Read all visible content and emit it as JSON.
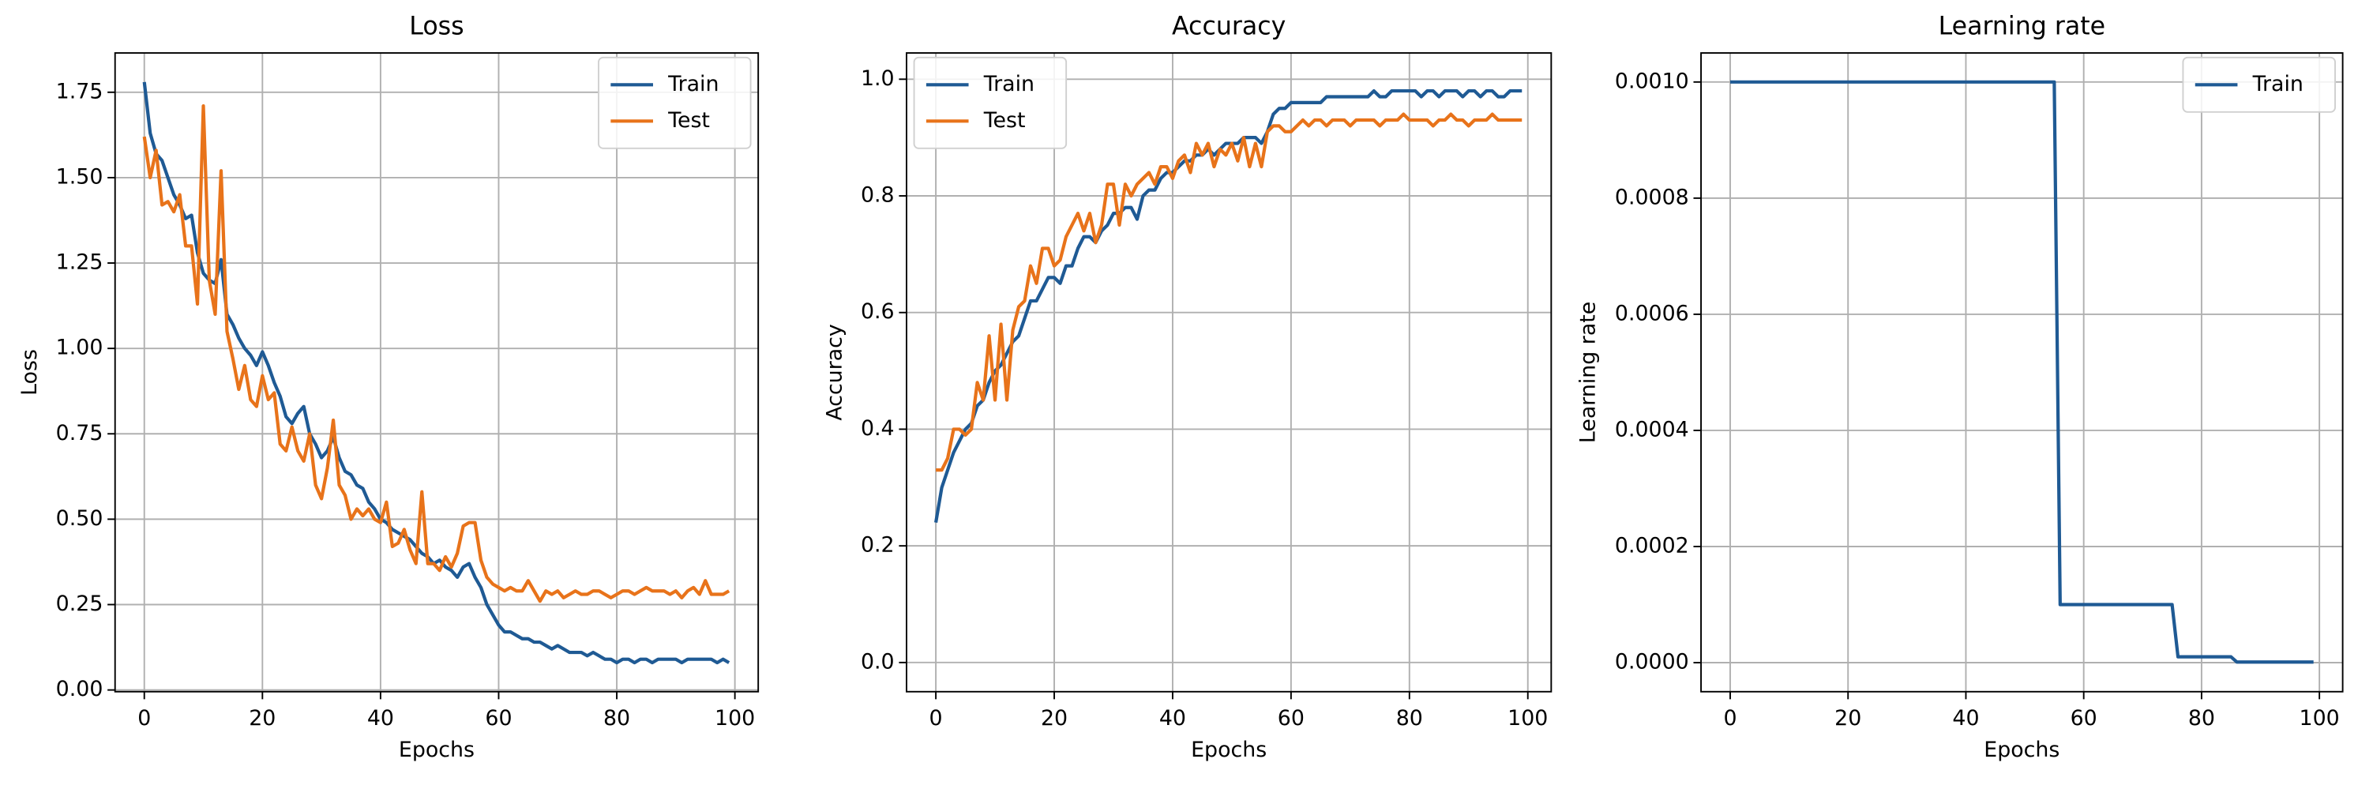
{
  "chart_data": [
    {
      "type": "line",
      "title": "Loss",
      "xlabel": "Epochs",
      "ylabel": "Loss",
      "x": [
        0,
        1,
        2,
        3,
        4,
        5,
        6,
        7,
        8,
        9,
        10,
        11,
        12,
        13,
        14,
        15,
        16,
        17,
        18,
        19,
        20,
        21,
        22,
        23,
        24,
        25,
        26,
        27,
        28,
        29,
        30,
        31,
        32,
        33,
        34,
        35,
        36,
        37,
        38,
        39,
        40,
        41,
        42,
        43,
        44,
        45,
        46,
        47,
        48,
        49,
        50,
        51,
        52,
        53,
        54,
        55,
        56,
        57,
        58,
        59,
        60,
        61,
        62,
        63,
        64,
        65,
        66,
        67,
        68,
        69,
        70,
        71,
        72,
        73,
        74,
        75,
        76,
        77,
        78,
        79,
        80,
        81,
        82,
        83,
        84,
        85,
        86,
        87,
        88,
        89,
        90,
        91,
        92,
        93,
        94,
        95,
        96,
        97,
        98,
        99
      ],
      "series": [
        {
          "name": "Train",
          "color": "#1f5a94",
          "values": [
            1.78,
            1.63,
            1.57,
            1.55,
            1.5,
            1.45,
            1.42,
            1.38,
            1.39,
            1.28,
            1.22,
            1.2,
            1.19,
            1.26,
            1.1,
            1.07,
            1.03,
            1.0,
            0.98,
            0.95,
            0.99,
            0.95,
            0.9,
            0.86,
            0.8,
            0.78,
            0.81,
            0.83,
            0.75,
            0.72,
            0.68,
            0.7,
            0.74,
            0.68,
            0.64,
            0.63,
            0.6,
            0.59,
            0.55,
            0.53,
            0.5,
            0.49,
            0.47,
            0.46,
            0.45,
            0.44,
            0.42,
            0.4,
            0.39,
            0.37,
            0.38,
            0.36,
            0.35,
            0.33,
            0.36,
            0.37,
            0.33,
            0.3,
            0.25,
            0.22,
            0.19,
            0.17,
            0.17,
            0.16,
            0.15,
            0.15,
            0.14,
            0.14,
            0.13,
            0.12,
            0.13,
            0.12,
            0.11,
            0.11,
            0.11,
            0.1,
            0.11,
            0.1,
            0.09,
            0.09,
            0.08,
            0.09,
            0.09,
            0.08,
            0.09,
            0.09,
            0.08,
            0.09,
            0.09,
            0.09,
            0.09,
            0.08,
            0.09,
            0.09,
            0.09,
            0.09,
            0.09,
            0.08,
            0.09,
            0.08
          ]
        },
        {
          "name": "Test",
          "color": "#e8731a",
          "values": [
            1.62,
            1.5,
            1.58,
            1.42,
            1.43,
            1.4,
            1.45,
            1.3,
            1.3,
            1.13,
            1.71,
            1.2,
            1.1,
            1.52,
            1.05,
            0.97,
            0.88,
            0.95,
            0.85,
            0.83,
            0.92,
            0.85,
            0.87,
            0.72,
            0.7,
            0.77,
            0.7,
            0.67,
            0.75,
            0.6,
            0.56,
            0.65,
            0.79,
            0.6,
            0.57,
            0.5,
            0.53,
            0.51,
            0.53,
            0.5,
            0.49,
            0.55,
            0.42,
            0.43,
            0.47,
            0.41,
            0.37,
            0.58,
            0.37,
            0.37,
            0.35,
            0.39,
            0.36,
            0.4,
            0.48,
            0.49,
            0.49,
            0.38,
            0.33,
            0.31,
            0.3,
            0.29,
            0.3,
            0.29,
            0.29,
            0.32,
            0.29,
            0.26,
            0.29,
            0.28,
            0.29,
            0.27,
            0.28,
            0.29,
            0.28,
            0.28,
            0.29,
            0.29,
            0.28,
            0.27,
            0.28,
            0.29,
            0.29,
            0.28,
            0.29,
            0.3,
            0.29,
            0.29,
            0.29,
            0.28,
            0.29,
            0.27,
            0.29,
            0.3,
            0.28,
            0.32,
            0.28,
            0.28,
            0.28,
            0.29
          ]
        }
      ],
      "xlim": [
        -4.95,
        103.95
      ],
      "ylim": [
        -0.005,
        1.865
      ],
      "xticks": [
        0,
        20,
        40,
        60,
        80,
        100
      ],
      "yticks": [
        {
          "value": 0,
          "label": "0.00"
        },
        {
          "value": 0.25,
          "label": "0.25"
        },
        {
          "value": 0.5,
          "label": "0.50"
        },
        {
          "value": 0.75,
          "label": "0.75"
        },
        {
          "value": 1,
          "label": "1.00"
        },
        {
          "value": 1.25,
          "label": "1.25"
        },
        {
          "value": 1.5,
          "label": "1.50"
        },
        {
          "value": 1.75,
          "label": "1.75"
        }
      ],
      "grid": true,
      "legend": "upper right"
    },
    {
      "type": "line",
      "title": "Accuracy",
      "xlabel": "Epochs",
      "ylabel": "Accuracy",
      "x": [
        0,
        1,
        2,
        3,
        4,
        5,
        6,
        7,
        8,
        9,
        10,
        11,
        12,
        13,
        14,
        15,
        16,
        17,
        18,
        19,
        20,
        21,
        22,
        23,
        24,
        25,
        26,
        27,
        28,
        29,
        30,
        31,
        32,
        33,
        34,
        35,
        36,
        37,
        38,
        39,
        40,
        41,
        42,
        43,
        44,
        45,
        46,
        47,
        48,
        49,
        50,
        51,
        52,
        53,
        54,
        55,
        56,
        57,
        58,
        59,
        60,
        61,
        62,
        63,
        64,
        65,
        66,
        67,
        68,
        69,
        70,
        71,
        72,
        73,
        74,
        75,
        76,
        77,
        78,
        79,
        80,
        81,
        82,
        83,
        84,
        85,
        86,
        87,
        88,
        89,
        90,
        91,
        92,
        93,
        94,
        95,
        96,
        97,
        98,
        99
      ],
      "series": [
        {
          "name": "Train",
          "color": "#1f5a94",
          "values": [
            0.24,
            0.3,
            0.33,
            0.36,
            0.38,
            0.4,
            0.41,
            0.44,
            0.45,
            0.48,
            0.5,
            0.51,
            0.53,
            0.55,
            0.56,
            0.59,
            0.62,
            0.62,
            0.64,
            0.66,
            0.66,
            0.65,
            0.68,
            0.68,
            0.71,
            0.73,
            0.73,
            0.72,
            0.74,
            0.75,
            0.77,
            0.77,
            0.78,
            0.78,
            0.76,
            0.8,
            0.81,
            0.81,
            0.83,
            0.84,
            0.84,
            0.85,
            0.86,
            0.86,
            0.87,
            0.87,
            0.88,
            0.87,
            0.88,
            0.89,
            0.89,
            0.89,
            0.9,
            0.9,
            0.9,
            0.89,
            0.91,
            0.94,
            0.95,
            0.95,
            0.96,
            0.96,
            0.96,
            0.96,
            0.96,
            0.96,
            0.97,
            0.97,
            0.97,
            0.97,
            0.97,
            0.97,
            0.97,
            0.97,
            0.98,
            0.97,
            0.97,
            0.98,
            0.98,
            0.98,
            0.98,
            0.98,
            0.97,
            0.98,
            0.98,
            0.97,
            0.98,
            0.98,
            0.98,
            0.97,
            0.98,
            0.98,
            0.97,
            0.98,
            0.98,
            0.97,
            0.97,
            0.98,
            0.98,
            0.98
          ]
        },
        {
          "name": "Test",
          "color": "#e8731a",
          "values": [
            0.33,
            0.33,
            0.35,
            0.4,
            0.4,
            0.39,
            0.4,
            0.48,
            0.45,
            0.56,
            0.45,
            0.58,
            0.45,
            0.57,
            0.61,
            0.62,
            0.68,
            0.65,
            0.71,
            0.71,
            0.68,
            0.69,
            0.73,
            0.75,
            0.77,
            0.74,
            0.77,
            0.72,
            0.75,
            0.82,
            0.82,
            0.75,
            0.82,
            0.8,
            0.82,
            0.83,
            0.84,
            0.82,
            0.85,
            0.85,
            0.83,
            0.86,
            0.87,
            0.84,
            0.89,
            0.87,
            0.89,
            0.85,
            0.88,
            0.87,
            0.89,
            0.86,
            0.9,
            0.85,
            0.89,
            0.85,
            0.91,
            0.92,
            0.92,
            0.91,
            0.91,
            0.92,
            0.93,
            0.92,
            0.93,
            0.93,
            0.92,
            0.93,
            0.93,
            0.93,
            0.92,
            0.93,
            0.93,
            0.93,
            0.93,
            0.92,
            0.93,
            0.93,
            0.93,
            0.94,
            0.93,
            0.93,
            0.93,
            0.93,
            0.92,
            0.93,
            0.93,
            0.94,
            0.93,
            0.93,
            0.92,
            0.93,
            0.93,
            0.93,
            0.94,
            0.93,
            0.93,
            0.93,
            0.93,
            0.93
          ]
        }
      ],
      "xlim": [
        -4.95,
        103.95
      ],
      "ylim": [
        -0.05,
        1.045
      ],
      "xticks": [
        0,
        20,
        40,
        60,
        80,
        100
      ],
      "yticks": [
        {
          "value": 0,
          "label": "0.0"
        },
        0.2,
        0.4,
        0.6,
        0.8,
        {
          "value": 1,
          "label": "1.0"
        }
      ],
      "grid": true,
      "legend": "upper left"
    },
    {
      "type": "line",
      "title": "Learning rate",
      "xlabel": "Epochs",
      "ylabel": "Learning rate",
      "x": [
        0,
        1,
        2,
        3,
        4,
        5,
        6,
        7,
        8,
        9,
        10,
        11,
        12,
        13,
        14,
        15,
        16,
        17,
        18,
        19,
        20,
        21,
        22,
        23,
        24,
        25,
        26,
        27,
        28,
        29,
        30,
        31,
        32,
        33,
        34,
        35,
        36,
        37,
        38,
        39,
        40,
        41,
        42,
        43,
        44,
        45,
        46,
        47,
        48,
        49,
        50,
        51,
        52,
        53,
        54,
        55,
        56,
        57,
        58,
        59,
        60,
        61,
        62,
        63,
        64,
        65,
        66,
        67,
        68,
        69,
        70,
        71,
        72,
        73,
        74,
        75,
        76,
        77,
        78,
        79,
        80,
        81,
        82,
        83,
        84,
        85,
        86,
        87,
        88,
        89,
        90,
        91,
        92,
        93,
        94,
        95,
        96,
        97,
        98,
        99
      ],
      "series": [
        {
          "name": "Train",
          "color": "#1f5a94",
          "values": [
            0.001,
            0.001,
            0.001,
            0.001,
            0.001,
            0.001,
            0.001,
            0.001,
            0.001,
            0.001,
            0.001,
            0.001,
            0.001,
            0.001,
            0.001,
            0.001,
            0.001,
            0.001,
            0.001,
            0.001,
            0.001,
            0.001,
            0.001,
            0.001,
            0.001,
            0.001,
            0.001,
            0.001,
            0.001,
            0.001,
            0.001,
            0.001,
            0.001,
            0.001,
            0.001,
            0.001,
            0.001,
            0.001,
            0.001,
            0.001,
            0.001,
            0.001,
            0.001,
            0.001,
            0.001,
            0.001,
            0.001,
            0.001,
            0.001,
            0.001,
            0.001,
            0.001,
            0.001,
            0.001,
            0.001,
            0.001,
            0.0001,
            0.0001,
            0.0001,
            0.0001,
            0.0001,
            0.0001,
            0.0001,
            0.0001,
            0.0001,
            0.0001,
            0.0001,
            0.0001,
            0.0001,
            0.0001,
            0.0001,
            0.0001,
            0.0001,
            0.0001,
            0.0001,
            0.0001,
            1e-05,
            1e-05,
            1e-05,
            1e-05,
            1e-05,
            1e-05,
            1e-05,
            1e-05,
            1e-05,
            1e-05,
            1e-06,
            1e-06,
            1e-06,
            1e-06,
            1e-06,
            1e-06,
            1e-06,
            1e-06,
            1e-06,
            1e-06,
            1e-06,
            1e-06,
            1e-06,
            1e-06
          ]
        }
      ],
      "xlim": [
        -4.95,
        103.95
      ],
      "ylim": [
        -5e-05,
        0.00105
      ],
      "xticks": [
        0,
        20,
        40,
        60,
        80,
        100
      ],
      "yticks": [
        {
          "value": 0,
          "label": "0.0000"
        },
        {
          "value": 0.0002,
          "label": "0.0002"
        },
        {
          "value": 0.0004,
          "label": "0.0004"
        },
        {
          "value": 0.0006,
          "label": "0.0006"
        },
        {
          "value": 0.0008,
          "label": "0.0008"
        },
        {
          "value": 0.001,
          "label": "0.0010"
        }
      ],
      "grid": true,
      "legend": "upper right"
    }
  ]
}
